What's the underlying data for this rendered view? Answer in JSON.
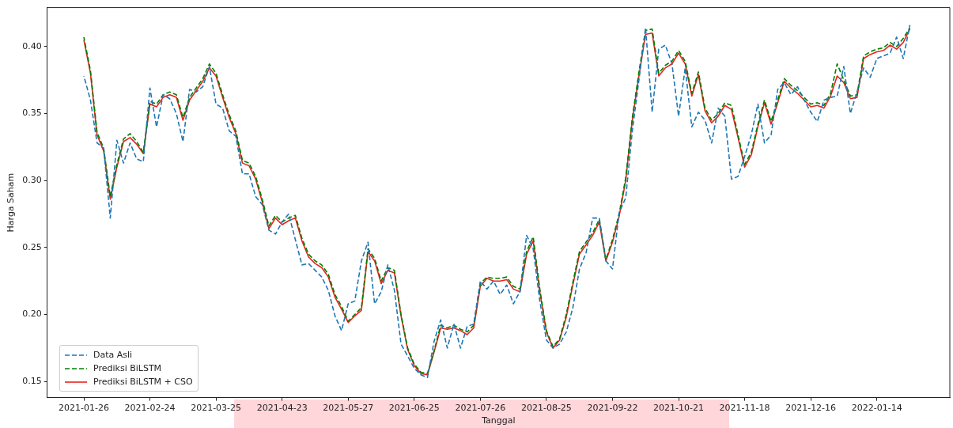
{
  "chart_data": {
    "type": "line",
    "xlabel": "Tanggal",
    "ylabel": "Harga Saham",
    "categories": [
      "2021-01-26",
      null,
      null,
      null,
      null,
      null,
      null,
      null,
      null,
      null,
      "2021-02-24",
      null,
      null,
      null,
      null,
      null,
      null,
      null,
      null,
      null,
      "2021-03-25",
      null,
      null,
      null,
      null,
      null,
      null,
      null,
      null,
      null,
      "2021-04-23",
      null,
      null,
      null,
      null,
      null,
      null,
      null,
      null,
      null,
      "2021-05-27",
      null,
      null,
      null,
      null,
      null,
      null,
      null,
      null,
      null,
      "2021-06-25",
      null,
      null,
      null,
      null,
      null,
      null,
      null,
      null,
      null,
      "2021-07-26",
      null,
      null,
      null,
      null,
      null,
      null,
      null,
      null,
      null,
      "2021-08-25",
      null,
      null,
      null,
      null,
      null,
      null,
      null,
      null,
      null,
      "2021-09-22",
      null,
      null,
      null,
      null,
      null,
      null,
      null,
      null,
      null,
      "2021-10-21",
      null,
      null,
      null,
      null,
      null,
      null,
      null,
      null,
      null,
      "2021-11-18",
      null,
      null,
      null,
      null,
      null,
      null,
      null,
      null,
      null,
      "2021-12-16",
      null,
      null,
      null,
      null,
      null,
      null,
      null,
      null,
      null,
      "2022-01-14",
      null,
      null,
      null,
      null,
      null
    ],
    "ylim": [
      0.138,
      0.429
    ],
    "yticks": [
      {
        "value": 0.15,
        "label": "0.15"
      },
      {
        "value": 0.2,
        "label": "0.20"
      },
      {
        "value": 0.25,
        "label": "0.25"
      },
      {
        "value": 0.3,
        "label": "0.30"
      },
      {
        "value": 0.35,
        "label": "0.35"
      },
      {
        "value": 0.4,
        "label": "0.40"
      }
    ],
    "legend": "lower left",
    "marker": "none",
    "series": [
      {
        "name": "Data Asli",
        "color": "#1f77b4",
        "line_style": "dashed",
        "values": [
          0.378,
          0.36,
          0.328,
          0.324,
          0.272,
          0.33,
          0.313,
          0.328,
          0.316,
          0.314,
          0.369,
          0.34,
          0.364,
          0.361,
          0.35,
          0.329,
          0.368,
          0.366,
          0.37,
          0.385,
          0.357,
          0.354,
          0.337,
          0.333,
          0.305,
          0.305,
          0.288,
          0.282,
          0.263,
          0.26,
          0.269,
          0.275,
          0.256,
          0.237,
          0.238,
          0.233,
          0.228,
          0.218,
          0.199,
          0.188,
          0.208,
          0.21,
          0.24,
          0.254,
          0.208,
          0.217,
          0.237,
          0.218,
          0.178,
          0.169,
          0.16,
          0.155,
          0.153,
          0.18,
          0.196,
          0.175,
          0.193,
          0.175,
          0.191,
          0.193,
          0.225,
          0.219,
          0.225,
          0.215,
          0.222,
          0.208,
          0.217,
          0.259,
          0.249,
          0.21,
          0.181,
          0.175,
          0.178,
          0.187,
          0.205,
          0.234,
          0.246,
          0.272,
          0.272,
          0.24,
          0.234,
          0.276,
          0.287,
          0.337,
          0.375,
          0.414,
          0.351,
          0.398,
          0.401,
          0.387,
          0.348,
          0.384,
          0.34,
          0.351,
          0.345,
          0.328,
          0.354,
          0.348,
          0.301,
          0.303,
          0.318,
          0.334,
          0.357,
          0.328,
          0.334,
          0.368,
          0.373,
          0.364,
          0.37,
          0.36,
          0.351,
          0.344,
          0.36,
          0.362,
          0.363,
          0.385,
          0.35,
          0.366,
          0.384,
          0.377,
          0.391,
          0.393,
          0.395,
          0.407,
          0.391,
          0.416
        ]
      },
      {
        "name": "Prediksi BiLSTM",
        "color": "#008000",
        "line_style": "dashed",
        "values": [
          0.407,
          0.382,
          0.336,
          0.324,
          0.288,
          0.312,
          0.331,
          0.335,
          0.329,
          0.321,
          0.359,
          0.357,
          0.364,
          0.366,
          0.364,
          0.347,
          0.362,
          0.369,
          0.376,
          0.387,
          0.38,
          0.364,
          0.349,
          0.337,
          0.315,
          0.313,
          0.303,
          0.286,
          0.266,
          0.274,
          0.269,
          0.272,
          0.274,
          0.257,
          0.245,
          0.24,
          0.237,
          0.23,
          0.215,
          0.206,
          0.195,
          0.2,
          0.205,
          0.249,
          0.242,
          0.225,
          0.235,
          0.233,
          0.2,
          0.175,
          0.163,
          0.157,
          0.156,
          0.173,
          0.192,
          0.19,
          0.192,
          0.189,
          0.187,
          0.192,
          0.223,
          0.228,
          0.227,
          0.227,
          0.228,
          0.221,
          0.219,
          0.247,
          0.258,
          0.219,
          0.188,
          0.176,
          0.182,
          0.2,
          0.224,
          0.247,
          0.254,
          0.261,
          0.271,
          0.241,
          0.256,
          0.275,
          0.302,
          0.347,
          0.381,
          0.412,
          0.413,
          0.38,
          0.386,
          0.389,
          0.397,
          0.389,
          0.365,
          0.381,
          0.354,
          0.345,
          0.35,
          0.358,
          0.356,
          0.334,
          0.312,
          0.321,
          0.342,
          0.36,
          0.344,
          0.36,
          0.376,
          0.371,
          0.367,
          0.362,
          0.357,
          0.358,
          0.356,
          0.365,
          0.387,
          0.375,
          0.363,
          0.364,
          0.393,
          0.396,
          0.398,
          0.399,
          0.403,
          0.4,
          0.406,
          0.414
        ]
      },
      {
        "name": "Prediksi BiLSTM + CSO",
        "color": "#e8231e",
        "line_style": "solid",
        "values": [
          0.405,
          0.38,
          0.334,
          0.322,
          0.286,
          0.31,
          0.329,
          0.332,
          0.327,
          0.32,
          0.357,
          0.355,
          0.362,
          0.364,
          0.362,
          0.345,
          0.36,
          0.367,
          0.374,
          0.384,
          0.378,
          0.362,
          0.347,
          0.335,
          0.313,
          0.311,
          0.301,
          0.284,
          0.264,
          0.272,
          0.267,
          0.27,
          0.272,
          0.255,
          0.243,
          0.238,
          0.235,
          0.228,
          0.213,
          0.204,
          0.194,
          0.199,
          0.203,
          0.247,
          0.24,
          0.223,
          0.233,
          0.231,
          0.199,
          0.174,
          0.162,
          0.156,
          0.155,
          0.172,
          0.19,
          0.189,
          0.19,
          0.188,
          0.185,
          0.19,
          0.221,
          0.227,
          0.225,
          0.225,
          0.226,
          0.219,
          0.217,
          0.245,
          0.255,
          0.217,
          0.187,
          0.175,
          0.181,
          0.198,
          0.222,
          0.245,
          0.252,
          0.259,
          0.269,
          0.24,
          0.254,
          0.273,
          0.3,
          0.345,
          0.378,
          0.409,
          0.41,
          0.378,
          0.384,
          0.387,
          0.395,
          0.387,
          0.363,
          0.379,
          0.352,
          0.343,
          0.348,
          0.356,
          0.353,
          0.332,
          0.31,
          0.319,
          0.34,
          0.358,
          0.342,
          0.358,
          0.374,
          0.369,
          0.365,
          0.36,
          0.355,
          0.356,
          0.354,
          0.363,
          0.378,
          0.373,
          0.361,
          0.362,
          0.391,
          0.394,
          0.396,
          0.397,
          0.401,
          0.398,
          0.403,
          0.413
        ]
      }
    ]
  }
}
